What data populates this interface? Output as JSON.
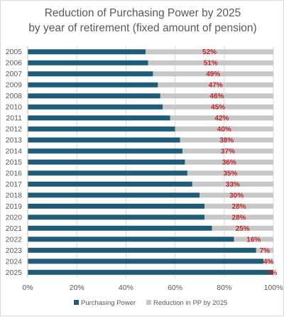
{
  "chart_data": {
    "type": "bar",
    "orientation": "horizontal",
    "stacked": "percent",
    "title_lines": [
      "Reduction of Purchasing Power by 2025",
      "by year of retirement (fixed amount of pension)"
    ],
    "categories": [
      "2005",
      "2006",
      "2007",
      "2009",
      "2008",
      "2010",
      "2011",
      "2012",
      "2013",
      "2014",
      "2015",
      "2016",
      "2017",
      "2018",
      "2019",
      "2020",
      "2021",
      "2022",
      "2023",
      "2024",
      "2025"
    ],
    "series": [
      {
        "name": "Purchasing Power",
        "color": "#1f5c79",
        "values": [
          48,
          49,
          51,
          53,
          54,
          55,
          58,
          60,
          62,
          63,
          64,
          65,
          67,
          70,
          72,
          72,
          75,
          84,
          93,
          96,
          100
        ]
      },
      {
        "name": "Reduction in PP by 2025",
        "color": "#c7c7c7",
        "values": [
          52,
          51,
          49,
          47,
          46,
          45,
          42,
          40,
          38,
          37,
          36,
          35,
          33,
          30,
          28,
          28,
          25,
          16,
          7,
          4,
          0
        ]
      }
    ],
    "data_labels": [
      "52%",
      "51%",
      "49%",
      "47%",
      "46%",
      "45%",
      "42%",
      "40%",
      "38%",
      "37%",
      "36%",
      "35%",
      "33%",
      "30%",
      "28%",
      "28%",
      "25%",
      "16%",
      "7%",
      "4%",
      "0%"
    ],
    "data_label_color": "#c0282d",
    "x_ticks": [
      "0%",
      "20%",
      "40%",
      "60%",
      "80%",
      "100%"
    ],
    "xlim": [
      0,
      100
    ],
    "grid": true,
    "legend_position": "bottom"
  }
}
